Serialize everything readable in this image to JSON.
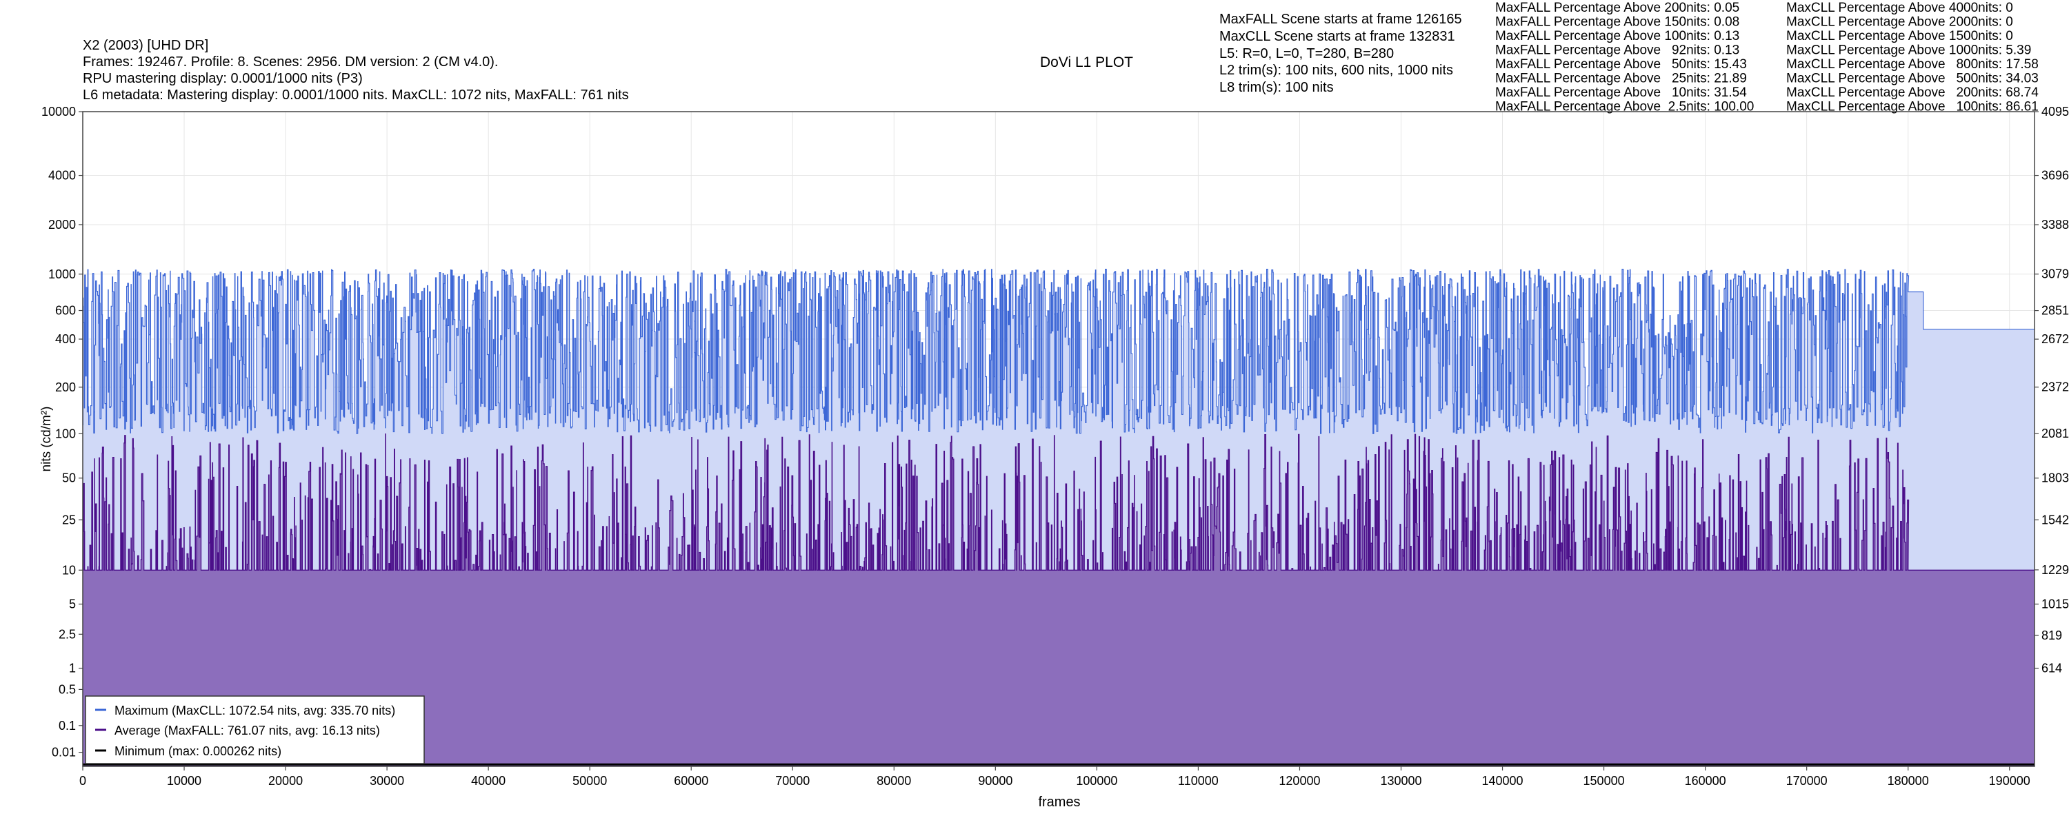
{
  "header": {
    "left_lines": [
      "X2 (2003) [UHD DR]",
      "Frames: 192467. Profile: 8. Scenes: 2956. DM version: 2 (CM v4.0).",
      "RPU mastering display: 0.0001/1000 nits  (P3)",
      "L6 metadata: Mastering display: 0.0001/1000 nits. MaxCLL: 1072 nits, MaxFALL: 761 nits"
    ],
    "center_title": "DoVi L1 PLOT",
    "mid_lines": [
      "MaxFALL Scene starts at frame 126165",
      "MaxCLL Scene starts at frame 132831",
      "L5: R=0, L=0, T=280, B=280",
      "L2 trim(s): 100 nits, 600 nits, 1000 nits",
      "L8 trim(s): 100 nits"
    ],
    "maxfall_pct": [
      {
        "label": "MaxFALL Percentage Above 200nits:",
        "value": "0.05"
      },
      {
        "label": "MaxFALL Percentage Above 150nits:",
        "value": "0.08"
      },
      {
        "label": "MaxFALL Percentage Above 100nits:",
        "value": "0.13"
      },
      {
        "label": "MaxFALL Percentage Above   92nits:",
        "value": "0.13"
      },
      {
        "label": "MaxFALL Percentage Above   50nits:",
        "value": "15.43"
      },
      {
        "label": "MaxFALL Percentage Above   25nits:",
        "value": "21.89"
      },
      {
        "label": "MaxFALL Percentage Above   10nits:",
        "value": "31.54"
      },
      {
        "label": "MaxFALL Percentage Above  2.5nits:",
        "value": "100.00"
      }
    ],
    "maxcll_pct": [
      {
        "label": "MaxCLL Percentage Above 4000nits:",
        "value": "0"
      },
      {
        "label": "MaxCLL Percentage Above 2000nits:",
        "value": "0"
      },
      {
        "label": "MaxCLL Percentage Above 1500nits:",
        "value": "0"
      },
      {
        "label": "MaxCLL Percentage Above 1000nits:",
        "value": "5.39"
      },
      {
        "label": "MaxCLL Percentage Above   800nits:",
        "value": "17.58"
      },
      {
        "label": "MaxCLL Percentage Above   500nits:",
        "value": "34.03"
      },
      {
        "label": "MaxCLL Percentage Above   200nits:",
        "value": "68.74"
      },
      {
        "label": "MaxCLL Percentage Above   100nits:",
        "value": "86.61"
      }
    ]
  },
  "chart_data": {
    "type": "area",
    "title": "DoVi L1 PLOT",
    "xlabel": "frames",
    "ylabel": "nits (cd/m²)",
    "xlim": [
      0,
      192467
    ],
    "x_ticks": [
      0,
      10000,
      20000,
      30000,
      40000,
      50000,
      60000,
      70000,
      80000,
      90000,
      100000,
      110000,
      120000,
      130000,
      140000,
      150000,
      160000,
      170000,
      180000,
      190000
    ],
    "y_ticks_left": [
      "10000",
      "4000",
      "2000",
      "1000",
      "600",
      "400",
      "200",
      "100",
      "50",
      "25",
      "10",
      "5",
      "2.5",
      "1",
      "0.5",
      "0.1",
      "0.01"
    ],
    "y_ticks_right": [
      "4095",
      "3696",
      "3388",
      "3079",
      "2851",
      "2672",
      "2372",
      "2081",
      "1803",
      "1542",
      "1229",
      "1015",
      "819",
      "614"
    ],
    "y_scale": "PQ (perceptual quantizer)",
    "grid": true,
    "legend_position": "lower-left",
    "series": [
      {
        "name": "Maximum (MaxCLL: 1072.54 nits, avg: 335.70 nits)",
        "color": "#3d67d6",
        "fill": "#d0d9f7",
        "max": 1072.54,
        "avg": 335.7
      },
      {
        "name": "Average (MaxFALL: 761.07 nits, avg: 16.13 nits)",
        "color": "#4b0f8a",
        "fill": "#8c6ebc",
        "max": 761.07,
        "avg": 16.13
      },
      {
        "name": "Minimum (max: 0.000262 nits)",
        "color": "#000000",
        "max": 0.000262
      }
    ]
  }
}
